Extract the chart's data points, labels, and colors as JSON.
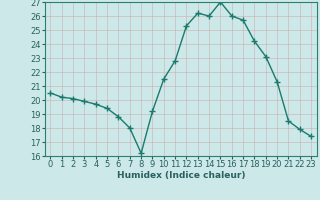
{
  "x": [
    0,
    1,
    2,
    3,
    4,
    5,
    6,
    7,
    8,
    9,
    10,
    11,
    12,
    13,
    14,
    15,
    16,
    17,
    18,
    19,
    20,
    21,
    22,
    23
  ],
  "y": [
    20.5,
    20.2,
    20.1,
    19.9,
    19.7,
    19.4,
    18.8,
    18.0,
    16.2,
    19.2,
    21.5,
    22.8,
    25.3,
    26.2,
    26.0,
    27.0,
    26.0,
    25.7,
    24.2,
    23.1,
    21.3,
    18.5,
    17.9,
    17.4
  ],
  "line_color": "#1a7a6e",
  "marker": "+",
  "marker_size": 4,
  "bg_color": "#cce8e8",
  "grid_color": "#b8d8d8",
  "plot_bg": "#cce8e8",
  "xlabel": "Humidex (Indice chaleur)",
  "ylim": [
    16,
    27
  ],
  "xlim": [
    -0.5,
    23.5
  ],
  "yticks": [
    16,
    17,
    18,
    19,
    20,
    21,
    22,
    23,
    24,
    25,
    26,
    27
  ],
  "xticks": [
    0,
    1,
    2,
    3,
    4,
    5,
    6,
    7,
    8,
    9,
    10,
    11,
    12,
    13,
    14,
    15,
    16,
    17,
    18,
    19,
    20,
    21,
    22,
    23
  ],
  "xlabel_fontsize": 6.5,
  "tick_fontsize": 6,
  "line_width": 1.0,
  "tick_color": "#2a6060",
  "label_color": "#2a6060",
  "spine_color": "#2a8070"
}
